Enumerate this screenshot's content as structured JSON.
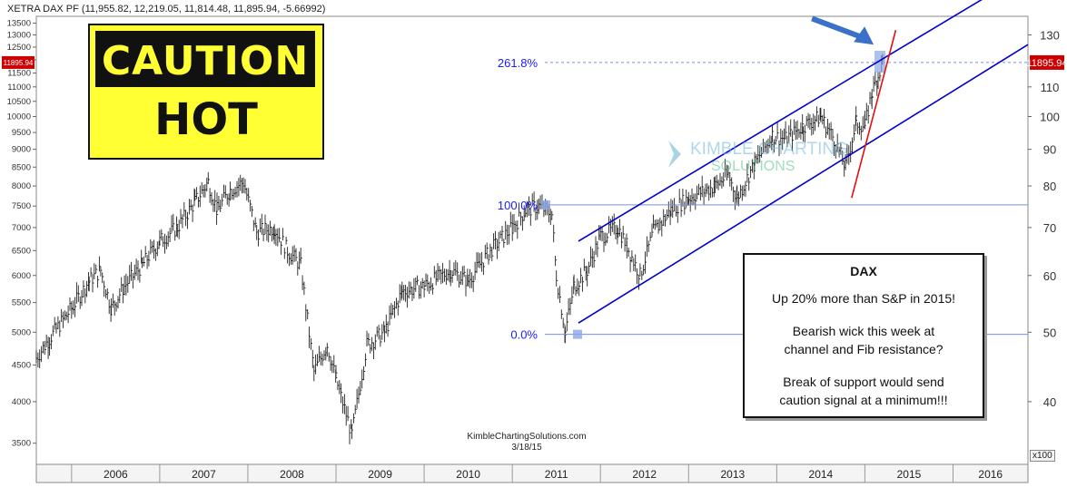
{
  "header": {
    "title": "XETRA DAX PF (11,955.82, 12,219.05, 11,814.48, 11,895.94, -5.66992)",
    "right_price_tag": "11895.94",
    "left_price_tag": "11895.94",
    "scale_note": "x100"
  },
  "caution_sign": {
    "line1": "CAUTION",
    "line2": "HOT"
  },
  "watermark": {
    "line1": "KIMBLE CHARTING",
    "line2": "SOLUTIONS"
  },
  "note": {
    "title": "DAX",
    "line1": "Up 20% more than S&P in 2015!",
    "line2": "Bearish wick this week at",
    "line3": "channel and Fib resistance?",
    "line4": "Break of support would send",
    "line5": "caution signal at a minimum!!!"
  },
  "footer": {
    "site": "KimbleChartingSolutions.com",
    "date": "3/18/15"
  },
  "colors": {
    "channel": "#0000cc",
    "trend": "#dd1111",
    "fib": "#7a8fe0",
    "price": "#222222",
    "arrow": "#3a70c8",
    "sign": "#ffff33"
  },
  "chart_data": {
    "type": "line",
    "title": "XETRA DAX PF",
    "xlabel": "",
    "ylabel": "",
    "log_scale": true,
    "xlim": [
      2005.6,
      2016.85
    ],
    "ylim": [
      3270,
      13800
    ],
    "x_ticks": [
      2006,
      2007,
      2008,
      2009,
      2010,
      2011,
      2012,
      2013,
      2014,
      2015,
      2016
    ],
    "left_ticks": [
      3500,
      4000,
      4500,
      5000,
      5500,
      6000,
      6500,
      7000,
      7500,
      8000,
      8500,
      9000,
      9500,
      10000,
      10500,
      11000,
      11500,
      12000,
      12500,
      13000,
      13500
    ],
    "right_ticks": [
      40,
      50,
      60,
      70,
      80,
      90,
      100,
      110,
      130
    ],
    "grid": false,
    "series": [
      {
        "name": "DAX",
        "points": [
          [
            2005.6,
            4600
          ],
          [
            2005.75,
            4900
          ],
          [
            2006.0,
            5400
          ],
          [
            2006.2,
            5900
          ],
          [
            2006.33,
            6100
          ],
          [
            2006.45,
            5400
          ],
          [
            2006.6,
            5800
          ],
          [
            2006.8,
            6200
          ],
          [
            2007.0,
            6700
          ],
          [
            2007.2,
            7000
          ],
          [
            2007.4,
            7600
          ],
          [
            2007.55,
            8100
          ],
          [
            2007.65,
            7400
          ],
          [
            2007.8,
            7900
          ],
          [
            2007.95,
            8100
          ],
          [
            2008.1,
            6900
          ],
          [
            2008.3,
            7000
          ],
          [
            2008.45,
            6500
          ],
          [
            2008.6,
            6200
          ],
          [
            2008.75,
            4400
          ],
          [
            2008.9,
            4800
          ],
          [
            2009.0,
            4300
          ],
          [
            2009.18,
            3600
          ],
          [
            2009.35,
            4800
          ],
          [
            2009.55,
            5000
          ],
          [
            2009.75,
            5700
          ],
          [
            2010.0,
            5800
          ],
          [
            2010.3,
            6100
          ],
          [
            2010.5,
            5900
          ],
          [
            2010.75,
            6500
          ],
          [
            2011.0,
            7000
          ],
          [
            2011.15,
            7400
          ],
          [
            2011.3,
            7500
          ],
          [
            2011.45,
            7300
          ],
          [
            2011.5,
            6000
          ],
          [
            2011.6,
            5000
          ],
          [
            2011.7,
            5800
          ],
          [
            2011.85,
            6100
          ],
          [
            2012.0,
            6800
          ],
          [
            2012.2,
            7000
          ],
          [
            2012.3,
            6600
          ],
          [
            2012.45,
            6000
          ],
          [
            2012.6,
            6900
          ],
          [
            2012.8,
            7400
          ],
          [
            2013.0,
            7700
          ],
          [
            2013.3,
            8000
          ],
          [
            2013.45,
            8300
          ],
          [
            2013.55,
            7700
          ],
          [
            2013.75,
            8600
          ],
          [
            2013.95,
            9400
          ],
          [
            2014.1,
            9300
          ],
          [
            2014.3,
            9700
          ],
          [
            2014.5,
            10000
          ],
          [
            2014.65,
            9300
          ],
          [
            2014.78,
            8500
          ],
          [
            2014.9,
            9800
          ],
          [
            2015.0,
            9700
          ],
          [
            2015.08,
            10800
          ],
          [
            2015.15,
            11400
          ],
          [
            2015.2,
            11896
          ]
        ]
      }
    ],
    "fib_levels": [
      {
        "label": "261.8%",
        "value": 11896
      },
      {
        "label": "100.0%",
        "value": 7528
      },
      {
        "label": "0.0%",
        "value": 4966
      }
    ],
    "channel_upper": [
      [
        2011.75,
        6700
      ],
      [
        2016.5,
        15000
      ]
    ],
    "channel_lower": [
      [
        2011.75,
        5150
      ],
      [
        2016.85,
        12600
      ]
    ],
    "trend_line": [
      [
        2014.85,
        7700
      ],
      [
        2015.35,
        13200
      ]
    ],
    "arrow_annotation": {
      "from": [
        2014.4,
        13700
      ],
      "to": [
        2015.1,
        12600
      ]
    }
  }
}
